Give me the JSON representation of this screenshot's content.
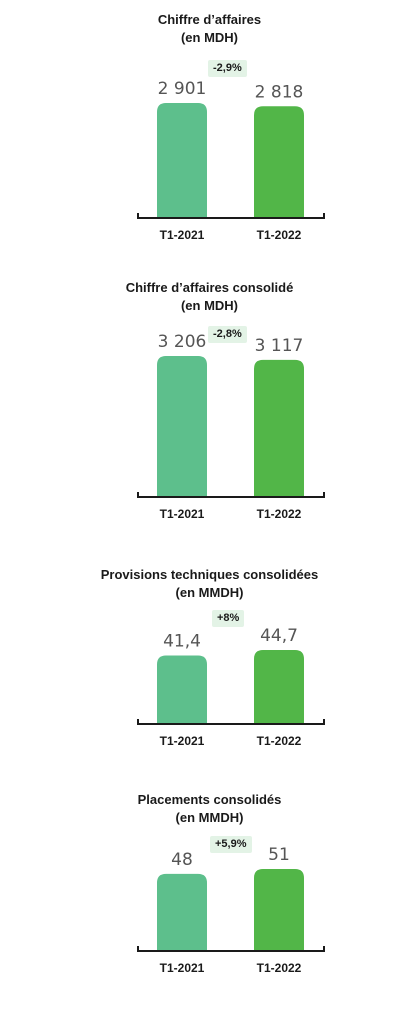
{
  "colors": {
    "bar_2021": "#5dbf8c",
    "bar_2022": "#52b648",
    "axis": "#1a1a1a",
    "badge_bg": "#e3f3e6"
  },
  "chart_data": [
    {
      "type": "bar",
      "title": [
        "Chiffre d’affaires",
        "(en MDH)"
      ],
      "categories": [
        "T1-2021",
        "T1-2022"
      ],
      "values": [
        2901,
        2818
      ],
      "value_labels": [
        "2 901",
        "2 818"
      ],
      "change_label": "-2,9%",
      "ylim": [
        0,
        2901
      ]
    },
    {
      "type": "bar",
      "title": [
        "Chiffre d’affaires consolidé",
        "(en MDH)"
      ],
      "categories": [
        "T1-2021",
        "T1-2022"
      ],
      "values": [
        3206,
        3117
      ],
      "value_labels": [
        "3 206",
        "3 117"
      ],
      "change_label": "-2,8%",
      "ylim": [
        0,
        3206
      ]
    },
    {
      "type": "bar",
      "title": [
        "Provisions techniques consolidées",
        "(en MMDH)"
      ],
      "categories": [
        "T1-2021",
        "T1-2022"
      ],
      "values": [
        41.4,
        44.7
      ],
      "value_labels": [
        "41,4",
        "44,7"
      ],
      "change_label": "+8%",
      "ylim": [
        0,
        44.7
      ]
    },
    {
      "type": "bar",
      "title": [
        "Placements consolidés",
        "(en MMDH)"
      ],
      "categories": [
        "T1-2021",
        "T1-2022"
      ],
      "values": [
        48,
        51
      ],
      "value_labels": [
        "48",
        "51"
      ],
      "change_label": "+5,9%",
      "ylim": [
        0,
        51
      ]
    }
  ]
}
